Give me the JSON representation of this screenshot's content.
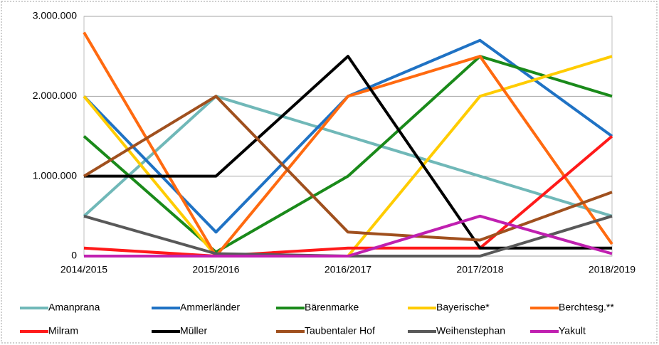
{
  "chart_data": {
    "type": "line",
    "categories": [
      "2014/2015",
      "2015/2016",
      "2016/2017",
      "2017/2018",
      "2018/2019"
    ],
    "series": [
      {
        "name": "Amanprana",
        "color": "#70b8b8",
        "values": [
          500000,
          2000000,
          1500000,
          1000000,
          500000
        ]
      },
      {
        "name": "Ammerländer",
        "color": "#1f72c4",
        "values": [
          2000000,
          300000,
          2000000,
          2700000,
          1500000
        ]
      },
      {
        "name": "Bärenmarke",
        "color": "#1a8a1a",
        "values": [
          1500000,
          50000,
          1000000,
          2500000,
          2000000
        ]
      },
      {
        "name": "Bayerische*",
        "color": "#ffcc00",
        "values": [
          2000000,
          0,
          0,
          2000000,
          2500000
        ]
      },
      {
        "name": "Berchtesg.**",
        "color": "#ff6a10",
        "values": [
          2800000,
          0,
          2000000,
          2500000,
          150000
        ]
      },
      {
        "name": "Milram",
        "color": "#ff1a1a",
        "values": [
          100000,
          0,
          100000,
          100000,
          1500000
        ]
      },
      {
        "name": "Müller",
        "color": "#000000",
        "values": [
          1000000,
          1000000,
          2500000,
          100000,
          100000
        ]
      },
      {
        "name": "Taubentaler Hof",
        "color": "#a0501e",
        "values": [
          1000000,
          2000000,
          300000,
          200000,
          800000
        ]
      },
      {
        "name": "Weihenstephan",
        "color": "#595959",
        "values": [
          500000,
          30000,
          0,
          0,
          500000
        ]
      },
      {
        "name": "Yakult",
        "color": "#c020b0",
        "values": [
          0,
          0,
          0,
          500000,
          30000
        ]
      }
    ],
    "ylim": [
      0,
      3000000
    ],
    "yticks": [
      {
        "value": 0,
        "label": "0"
      },
      {
        "value": 1000000,
        "label": "1.000.000"
      },
      {
        "value": 2000000,
        "label": "2.000.000"
      },
      {
        "value": 3000000,
        "label": "3.000.000"
      }
    ],
    "grid": true,
    "legend": "bottom"
  }
}
